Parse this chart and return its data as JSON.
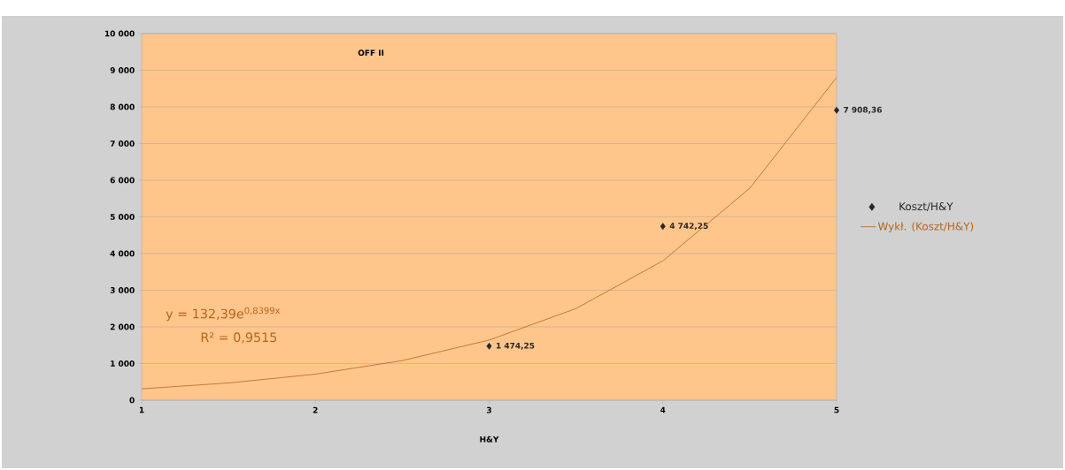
{
  "chart_data": {
    "type": "scatter",
    "title": "OFF II",
    "xlabel": "H&Y",
    "xlim": [
      1,
      5
    ],
    "xticks": [
      1,
      2,
      3,
      4,
      5
    ],
    "ylim": [
      0,
      10000
    ],
    "yticks": [
      {
        "value": 0,
        "label": "0"
      },
      {
        "value": 1000,
        "label": "1 000"
      },
      {
        "value": 2000,
        "label": "2 000"
      },
      {
        "value": 3000,
        "label": "3 000"
      },
      {
        "value": 4000,
        "label": "4 000"
      },
      {
        "value": 5000,
        "label": "5 000"
      },
      {
        "value": 6000,
        "label": "6 000"
      },
      {
        "value": 7000,
        "label": "7 000"
      },
      {
        "value": 8000,
        "label": "8 000"
      },
      {
        "value": 9000,
        "label": "9 000"
      },
      {
        "value": 10000,
        "label": "10 000"
      }
    ],
    "grid": "y",
    "legend": "right",
    "marker": "diamond",
    "series": [
      {
        "name": "Koszt/H&Y",
        "color": "#262626",
        "x": [
          3,
          4,
          5
        ],
        "values": [
          1474.25,
          4742.25,
          7908.36
        ],
        "value_labels": [
          "1 474,25",
          "4 742,25",
          "7 908,36"
        ]
      },
      {
        "name": "Wykł. (Koszt/H&Y)",
        "type": "line",
        "color": "#b5651d",
        "marker": "none",
        "x": [
          1,
          1.5,
          2,
          2.5,
          3,
          3.5,
          4,
          4.5,
          5
        ],
        "values": [
          310,
          470,
          710,
          1080,
          1640,
          2500,
          3800,
          5780,
          8800
        ]
      }
    ],
    "annotations": [
      "y = 132,39e$^{0,8399x}$",
      "R² = 0,9515"
    ]
  }
}
